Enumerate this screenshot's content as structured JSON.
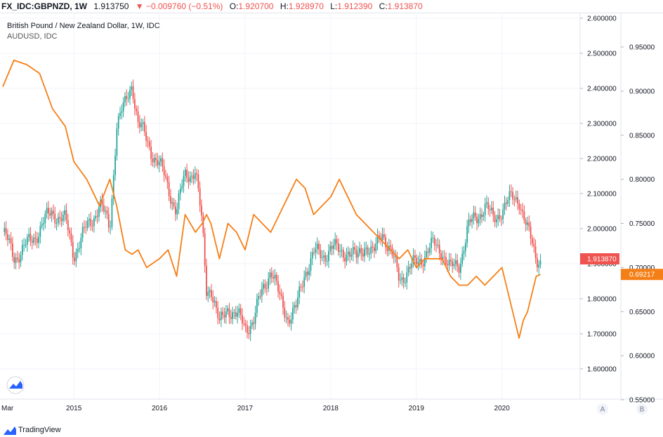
{
  "header": {
    "symbol": "FX_IDC:GBPNZD, 1W",
    "last": "1.913750",
    "change": "▼ −0.009760 (−0.51%)",
    "open_label": "O:",
    "open": "1.920700",
    "high_label": "H:",
    "high": "1.928970",
    "low_label": "L:",
    "low": "1.912390",
    "close_label": "C:",
    "close": "1.913870"
  },
  "legend": {
    "main": "British Pound / New Zealand Dollar, 1W, IDC",
    "overlay": "AUDUSD, IDC"
  },
  "footer": {
    "brand": "TradingView"
  },
  "scale_buttons": {
    "a": "A",
    "b": "B"
  },
  "colors": {
    "up": "#26a69a",
    "down": "#ef5350",
    "overlay": "#f57f17",
    "last_price_bg": "#ef5350",
    "overlay_tag_bg": "#f57f17"
  },
  "chart_data": {
    "type": "candlestick + line",
    "series": [
      {
        "name": "British Pound / New Zealand Dollar, 1W, IDC",
        "axis": "left-scale",
        "type": "candlestick",
        "last_value": "1.913870",
        "x": [
          2014.17,
          2014.3,
          2014.45,
          2014.6,
          2014.75,
          2014.9,
          2015.0,
          2015.15,
          2015.3,
          2015.42,
          2015.5,
          2015.6,
          2015.68,
          2015.75,
          2015.85,
          2016.0,
          2016.1,
          2016.2,
          2016.3,
          2016.42,
          2016.5,
          2016.55,
          2016.6,
          2016.7,
          2016.8,
          2016.9,
          2017.0,
          2017.1,
          2017.2,
          2017.3,
          2017.4,
          2017.5,
          2017.6,
          2017.7,
          2017.8,
          2017.9,
          2018.0,
          2018.1,
          2018.2,
          2018.3,
          2018.4,
          2018.5,
          2018.6,
          2018.7,
          2018.8,
          2018.9,
          2019.0,
          2019.1,
          2019.2,
          2019.3,
          2019.4,
          2019.5,
          2019.6,
          2019.7,
          2019.8,
          2019.9,
          2020.0,
          2020.1,
          2020.2,
          2020.3,
          2020.4,
          2020.45
        ],
        "values": [
          1.99,
          1.92,
          1.95,
          2.0,
          2.05,
          2.02,
          1.93,
          2.0,
          2.07,
          2.0,
          2.3,
          2.35,
          2.42,
          2.3,
          2.25,
          2.18,
          2.12,
          2.05,
          2.15,
          2.17,
          2.0,
          1.82,
          1.84,
          1.72,
          1.78,
          1.75,
          1.72,
          1.74,
          1.82,
          1.89,
          1.8,
          1.75,
          1.77,
          1.88,
          1.93,
          1.92,
          1.95,
          1.93,
          1.94,
          1.91,
          1.96,
          1.92,
          2.0,
          1.93,
          1.86,
          1.88,
          1.9,
          1.93,
          1.95,
          1.94,
          1.88,
          1.9,
          2.0,
          2.03,
          2.07,
          2.02,
          2.06,
          2.08,
          2.09,
          1.99,
          1.92,
          1.914
        ]
      },
      {
        "name": "AUDUSD, IDC",
        "axis": "right-scale",
        "type": "line",
        "last_value": "0.69217",
        "x": [
          2014.17,
          2014.3,
          2014.45,
          2014.6,
          2014.75,
          2014.9,
          2015.0,
          2015.15,
          2015.3,
          2015.42,
          2015.5,
          2015.6,
          2015.68,
          2015.75,
          2015.85,
          2016.0,
          2016.1,
          2016.2,
          2016.3,
          2016.42,
          2016.5,
          2016.55,
          2016.6,
          2016.7,
          2016.8,
          2016.9,
          2017.0,
          2017.1,
          2017.2,
          2017.3,
          2017.4,
          2017.5,
          2017.6,
          2017.7,
          2017.8,
          2017.9,
          2018.0,
          2018.1,
          2018.2,
          2018.3,
          2018.4,
          2018.5,
          2018.6,
          2018.7,
          2018.8,
          2018.9,
          2019.0,
          2019.1,
          2019.2,
          2019.3,
          2019.4,
          2019.5,
          2019.6,
          2019.7,
          2019.8,
          2019.9,
          2020.0,
          2020.1,
          2020.2,
          2020.25,
          2020.3,
          2020.4,
          2020.45
        ],
        "values": [
          0.905,
          0.935,
          0.93,
          0.92,
          0.88,
          0.86,
          0.82,
          0.8,
          0.77,
          0.8,
          0.77,
          0.72,
          0.715,
          0.72,
          0.7,
          0.71,
          0.72,
          0.69,
          0.76,
          0.74,
          0.75,
          0.76,
          0.75,
          0.71,
          0.75,
          0.74,
          0.72,
          0.76,
          0.75,
          0.74,
          0.76,
          0.78,
          0.8,
          0.79,
          0.76,
          0.77,
          0.78,
          0.8,
          0.78,
          0.76,
          0.75,
          0.74,
          0.73,
          0.72,
          0.71,
          0.72,
          0.7,
          0.71,
          0.71,
          0.71,
          0.69,
          0.68,
          0.68,
          0.69,
          0.68,
          0.69,
          0.7,
          0.66,
          0.62,
          0.64,
          0.65,
          0.69,
          0.692
        ]
      }
    ],
    "left_axis_ticks": [
      "2.600000",
      "2.500000",
      "2.400000",
      "2.300000",
      "2.200000",
      "2.100000",
      "2.000000",
      "1.900000",
      "1.800000",
      "1.700000",
      "1.600000"
    ],
    "right_axis_ticks": [
      "0.95000",
      "0.90000",
      "0.85000",
      "0.80000",
      "0.75000",
      "0.70000",
      "0.65000",
      "0.60000",
      "0.55000"
    ],
    "x_axis_ticks": [
      "Mar",
      "2015",
      "2016",
      "2017",
      "2018",
      "2019",
      "2020"
    ],
    "left_ylim": [
      1.6,
      2.6
    ],
    "right_ylim": [
      0.55,
      0.95
    ],
    "grid": true
  }
}
